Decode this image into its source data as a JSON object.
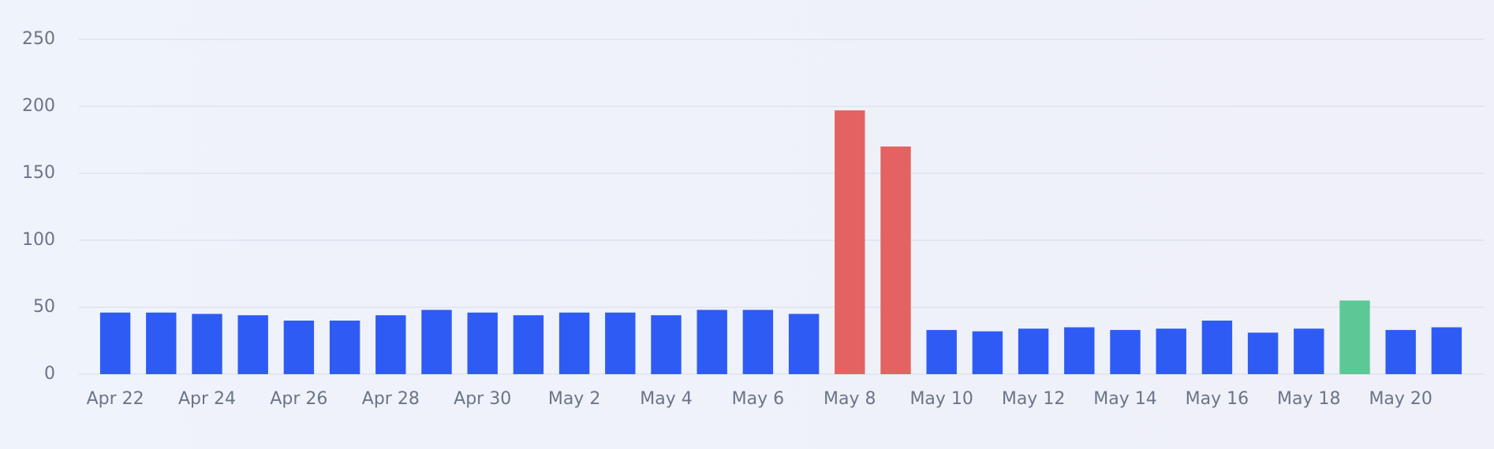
{
  "chart_data": {
    "type": "bar",
    "categories": [
      "Apr 22",
      null,
      "Apr 24",
      null,
      "Apr 26",
      null,
      "Apr 28",
      null,
      "Apr 30",
      null,
      "May 2",
      null,
      "May 4",
      null,
      "May 6",
      null,
      "May 8",
      null,
      "May 10",
      null,
      "May 12",
      null,
      "May 14",
      null,
      "May 16",
      null,
      "May 18",
      null,
      "May 20",
      null
    ],
    "values": [
      46,
      46,
      45,
      44,
      40,
      40,
      44,
      48,
      46,
      44,
      46,
      46,
      44,
      48,
      48,
      45,
      197,
      170,
      33,
      32,
      34,
      35,
      33,
      34,
      40,
      31,
      34,
      55,
      33,
      35
    ],
    "colors": [
      "#2f5bf5",
      "#2f5bf5",
      "#2f5bf5",
      "#2f5bf5",
      "#2f5bf5",
      "#2f5bf5",
      "#2f5bf5",
      "#2f5bf5",
      "#2f5bf5",
      "#2f5bf5",
      "#2f5bf5",
      "#2f5bf5",
      "#2f5bf5",
      "#2f5bf5",
      "#2f5bf5",
      "#2f5bf5",
      "#e56262",
      "#e56262",
      "#2f5bf5",
      "#2f5bf5",
      "#2f5bf5",
      "#2f5bf5",
      "#2f5bf5",
      "#2f5bf5",
      "#2f5bf5",
      "#2f5bf5",
      "#2f5bf5",
      "#5cc896",
      "#2f5bf5",
      "#2f5bf5"
    ],
    "ylim": [
      0,
      250
    ],
    "yticks": [
      0,
      50,
      100,
      150,
      200,
      250
    ],
    "grid": true
  }
}
